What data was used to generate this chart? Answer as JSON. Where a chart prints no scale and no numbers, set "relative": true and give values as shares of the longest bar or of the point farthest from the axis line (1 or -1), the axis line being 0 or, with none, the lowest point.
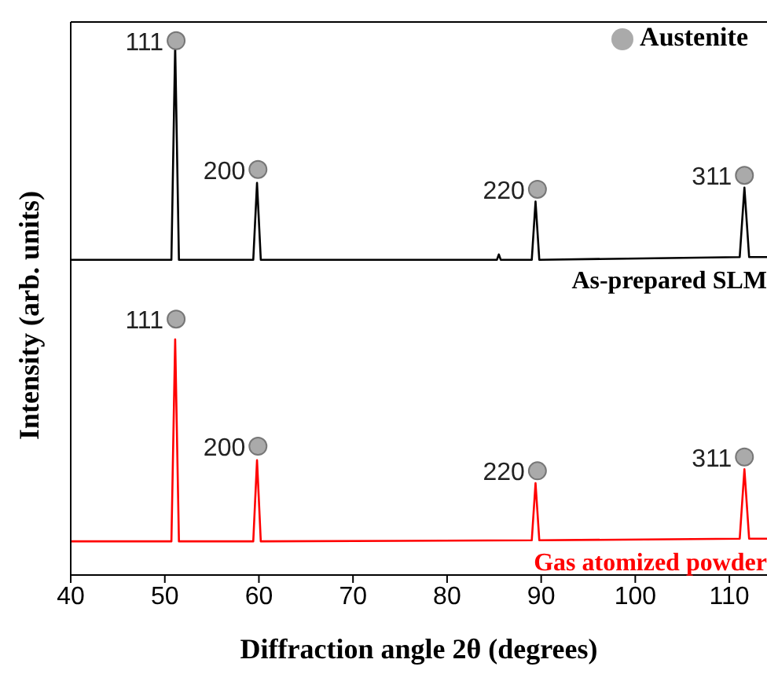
{
  "chart_data": {
    "type": "line",
    "relative": true,
    "xlabel": "Diffraction angle 2θ (degrees)",
    "ylabel": "Intensity (arb. units)",
    "xlim": [
      40,
      114
    ],
    "xticks": [
      40,
      50,
      60,
      70,
      80,
      90,
      100,
      110
    ],
    "legend": "top right",
    "line_style": "solid",
    "series": [
      {
        "name": "As-prepared SLM",
        "color": "#000000",
        "x": [
          40,
          50.7,
          51.1,
          51.5,
          59.4,
          59.8,
          60.2,
          85.3,
          85.5,
          85.7,
          89.0,
          89.4,
          89.8,
          111.1,
          111.6,
          112.1,
          114
        ],
        "values": [
          0.59,
          0.59,
          0.991,
          0.59,
          0.59,
          0.734,
          0.59,
          0.59,
          0.6,
          0.59,
          0.59,
          0.699,
          0.59,
          0.595,
          0.725,
          0.595,
          0.595
        ]
      },
      {
        "name": "Gas atomized powder",
        "color": "#ff0000",
        "x": [
          40,
          50.7,
          51.1,
          51.5,
          59.4,
          59.8,
          60.2,
          89.0,
          89.4,
          89.8,
          111.1,
          111.6,
          112.1,
          114
        ],
        "values": [
          0.063,
          0.063,
          0.441,
          0.063,
          0.063,
          0.215,
          0.063,
          0.065,
          0.172,
          0.065,
          0.068,
          0.198,
          0.068,
          0.068
        ]
      },
      {
        "name": "Austenite",
        "type": "scatter",
        "color": "#aaaaaa",
        "x": [
          51.2,
          59.9,
          89.6,
          111.6,
          51.2,
          59.9,
          89.6,
          111.6
        ],
        "values": [
          1.0,
          0.759,
          0.722,
          0.748,
          0.479,
          0.241,
          0.195,
          0.221
        ]
      }
    ],
    "annotations": [
      {
        "text": "111",
        "x": 51.2,
        "y": 1.0
      },
      {
        "text": "200",
        "x": 59.9,
        "y": 0.759
      },
      {
        "text": "220",
        "x": 89.6,
        "y": 0.722
      },
      {
        "text": "311",
        "x": 111.6,
        "y": 0.748
      },
      {
        "text": "111",
        "x": 51.2,
        "y": 0.479
      },
      {
        "text": "200",
        "x": 59.9,
        "y": 0.241
      },
      {
        "text": "220",
        "x": 89.6,
        "y": 0.195
      },
      {
        "text": "311",
        "x": 111.6,
        "y": 0.221
      }
    ]
  }
}
